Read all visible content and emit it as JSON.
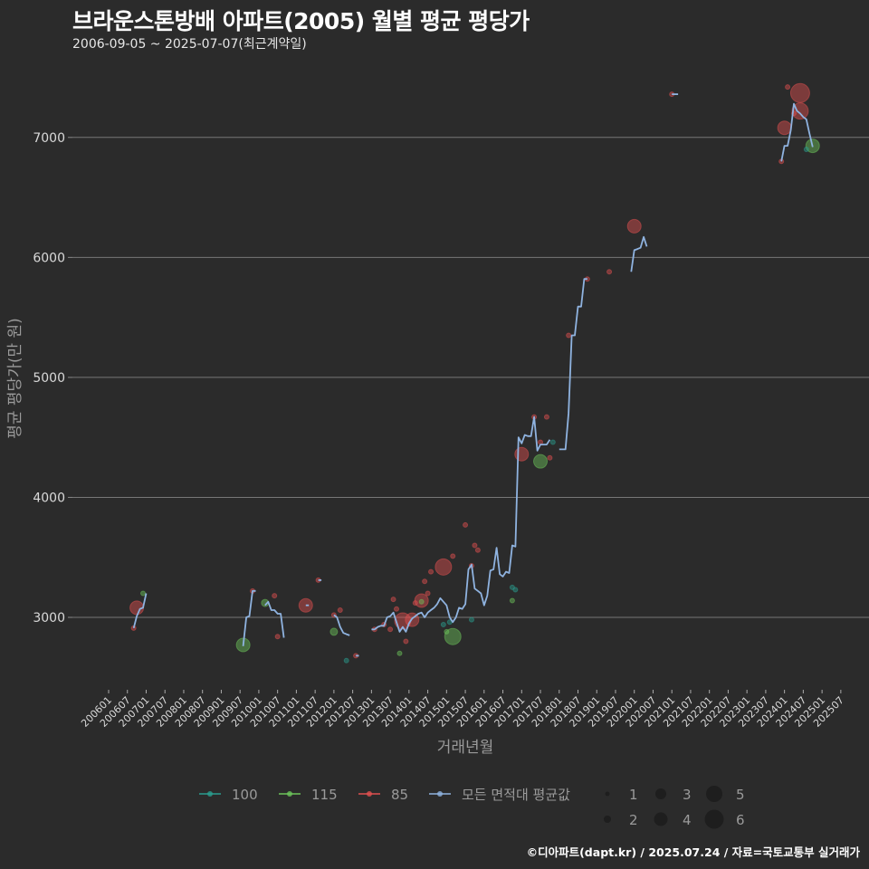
{
  "header": {
    "title": "브라운스톤방배 아파트(2005) 월별 평균 평당가",
    "subtitle": "2006-09-05 ~ 2025-07-07(최근계약일)"
  },
  "footer": {
    "credit": "©디아파트(dapt.kr) / 2025.07.24 / 자료=국토교통부 실거래가"
  },
  "chart_data": {
    "type": "line",
    "title": "브라운스톤방배 아파트(2005) 월별 평균 평당가",
    "subtitle": "2006-09-05 ~ 2025-07-07(최근계약일)",
    "xlabel": "거래년월",
    "ylabel": "평균 평당가(만 원)",
    "ylim": [
      2450,
      7600
    ],
    "yticks": [
      3000,
      4000,
      5000,
      6000,
      7000
    ],
    "grid": true,
    "x_tick_labels": [
      "200601",
      "200607",
      "200701",
      "200707",
      "200801",
      "200807",
      "200901",
      "200907",
      "201001",
      "201007",
      "201101",
      "201107",
      "201201",
      "201207",
      "201301",
      "201307",
      "201401",
      "201407",
      "201501",
      "201507",
      "201601",
      "201607",
      "201701",
      "201707",
      "201801",
      "201807",
      "201901",
      "201907",
      "202001",
      "202007",
      "202101",
      "202107",
      "202201",
      "202207",
      "202301",
      "202307",
      "202401",
      "202407",
      "202501",
      "202507"
    ],
    "legend": {
      "position": "bottom",
      "color_entries": [
        {
          "label": "100",
          "color": "#2a9d8f"
        },
        {
          "label": "115",
          "color": "#6cc35a"
        },
        {
          "label": "85",
          "color": "#e0504f"
        },
        {
          "label": "모든 면적대 평균값",
          "color": "#8fb3e0"
        }
      ],
      "size_entries": [
        "1",
        "2",
        "3",
        "4",
        "5",
        "6"
      ]
    },
    "series": [
      {
        "name": "모든 면적대 평균값",
        "type": "line",
        "color": "#8fb3e0",
        "segments": [
          [
            [
              "200609",
              2910
            ],
            [
              "200610",
              3010
            ],
            [
              "200611",
              3070
            ],
            [
              "200612",
              3080
            ],
            [
              "200701",
              3200
            ]
          ],
          [
            [
              "200908",
              2760
            ],
            [
              "200909",
              3000
            ],
            [
              "200910",
              3010
            ],
            [
              "200911",
              3220
            ],
            [
              "200912",
              3220
            ]
          ],
          [
            [
              "201003",
              3100
            ],
            [
              "201004",
              3130
            ],
            [
              "201005",
              3060
            ],
            [
              "201006",
              3060
            ],
            [
              "201007",
              3030
            ],
            [
              "201008",
              3030
            ],
            [
              "201009",
              2830
            ]
          ],
          [
            [
              "201104",
              3100
            ],
            [
              "201105",
              3100
            ]
          ],
          [
            [
              "201108",
              3310
            ],
            [
              "201109",
              3310
            ]
          ],
          [
            [
              "201201",
              3020
            ],
            [
              "201202",
              3000
            ],
            [
              "201203",
              2920
            ],
            [
              "201204",
              2870
            ],
            [
              "201205",
              2860
            ],
            [
              "201206",
              2850
            ]
          ],
          [
            [
              "201208",
              2680
            ],
            [
              "201209",
              2680
            ]
          ],
          [
            [
              "201301",
              2900
            ],
            [
              "201302",
              2900
            ],
            [
              "201303",
              2920
            ],
            [
              "201304",
              2930
            ],
            [
              "201305",
              2930
            ],
            [
              "201306",
              3000
            ],
            [
              "201307",
              3010
            ],
            [
              "201308",
              3040
            ],
            [
              "201309",
              2960
            ],
            [
              "201310",
              2880
            ],
            [
              "201311",
              2920
            ],
            [
              "201312",
              2880
            ],
            [
              "201401",
              2950
            ],
            [
              "201402",
              2990
            ],
            [
              "201403",
              3010
            ],
            [
              "201404",
              3030
            ],
            [
              "201405",
              3040
            ],
            [
              "201406",
              3000
            ],
            [
              "201407",
              3040
            ],
            [
              "201408",
              3060
            ],
            [
              "201409",
              3080
            ],
            [
              "201410",
              3110
            ],
            [
              "201411",
              3160
            ],
            [
              "201412",
              3130
            ],
            [
              "201501",
              3100
            ],
            [
              "201502",
              3000
            ],
            [
              "201503",
              2960
            ],
            [
              "201504",
              3000
            ],
            [
              "201505",
              3080
            ],
            [
              "201506",
              3070
            ],
            [
              "201507",
              3110
            ],
            [
              "201508",
              3400
            ],
            [
              "201509",
              3440
            ],
            [
              "201510",
              3240
            ],
            [
              "201511",
              3220
            ],
            [
              "201512",
              3200
            ],
            [
              "201601",
              3100
            ],
            [
              "201602",
              3180
            ],
            [
              "201603",
              3390
            ],
            [
              "201604",
              3400
            ],
            [
              "201605",
              3580
            ],
            [
              "201606",
              3360
            ],
            [
              "201607",
              3340
            ],
            [
              "201608",
              3380
            ],
            [
              "201609",
              3370
            ],
            [
              "201610",
              3600
            ],
            [
              "201611",
              3590
            ],
            [
              "201612",
              4500
            ],
            [
              "201701",
              4450
            ],
            [
              "201702",
              4520
            ],
            [
              "201703",
              4510
            ],
            [
              "201704",
              4510
            ],
            [
              "201705",
              4670
            ],
            [
              "201706",
              4390
            ],
            [
              "201707",
              4440
            ],
            [
              "201708",
              4440
            ],
            [
              "201709",
              4440
            ],
            [
              "201710",
              4480
            ]
          ],
          [
            [
              "201801",
              4400
            ],
            [
              "201802",
              4400
            ],
            [
              "201803",
              4400
            ],
            [
              "201804",
              4700
            ],
            [
              "201805",
              5350
            ],
            [
              "201806",
              5350
            ],
            [
              "201807",
              5590
            ],
            [
              "201808",
              5590
            ],
            [
              "201809",
              5820
            ],
            [
              "201810",
              5820
            ]
          ],
          [
            [
              "201912",
              5880
            ],
            [
              "202001",
              6060
            ],
            [
              "202002",
              6070
            ],
            [
              "202003",
              6080
            ],
            [
              "202004",
              6170
            ],
            [
              "202005",
              6090
            ]
          ],
          [
            [
              "202101",
              7360
            ],
            [
              "202102",
              7360
            ],
            [
              "202103",
              7360
            ]
          ],
          [
            [
              "202312",
              6800
            ],
            [
              "202401",
              6930
            ],
            [
              "202402",
              6930
            ],
            [
              "202403",
              7060
            ],
            [
              "202404",
              7280
            ],
            [
              "202405",
              7220
            ],
            [
              "202406",
              7200
            ],
            [
              "202407",
              7170
            ],
            [
              "202408",
              7150
            ],
            [
              "202409",
              7030
            ],
            [
              "202410",
              6920
            ]
          ]
        ]
      },
      {
        "name": "85",
        "type": "scatter",
        "color": "#e0504f",
        "points": [
          [
            "200610",
            3080,
            4
          ],
          [
            "200609",
            2910,
            1
          ],
          [
            "200911",
            3220,
            1
          ],
          [
            "201006",
            3180,
            1
          ],
          [
            "201007",
            2840,
            1
          ],
          [
            "201104",
            3100,
            4
          ],
          [
            "201108",
            3310,
            1
          ],
          [
            "201201",
            3020,
            1
          ],
          [
            "201203",
            3060,
            1
          ],
          [
            "201208",
            2680,
            1
          ],
          [
            "201302",
            2900,
            1
          ],
          [
            "201305",
            2940,
            1
          ],
          [
            "201307",
            2900,
            1
          ],
          [
            "201308",
            3150,
            1
          ],
          [
            "201309",
            3070,
            1
          ],
          [
            "201311",
            2970,
            5
          ],
          [
            "201312",
            2800,
            1
          ],
          [
            "201402",
            2980,
            4
          ],
          [
            "201403",
            3120,
            1
          ],
          [
            "201405",
            3140,
            4
          ],
          [
            "201406",
            3300,
            1
          ],
          [
            "201407",
            3200,
            1
          ],
          [
            "201408",
            3380,
            1
          ],
          [
            "201412",
            3420,
            5
          ],
          [
            "201503",
            3510,
            1
          ],
          [
            "201507",
            3770,
            1
          ],
          [
            "201509",
            3430,
            1
          ],
          [
            "201510",
            3600,
            1
          ],
          [
            "201511",
            3560,
            1
          ],
          [
            "201701",
            4360,
            4
          ],
          [
            "201705",
            4670,
            1
          ],
          [
            "201707",
            4460,
            1
          ],
          [
            "201709",
            4670,
            1
          ],
          [
            "201710",
            4330,
            1
          ],
          [
            "201804",
            5350,
            1
          ],
          [
            "201810",
            5820,
            1
          ],
          [
            "201905",
            5880,
            1
          ],
          [
            "202001",
            6260,
            4
          ],
          [
            "202101",
            7360,
            1
          ],
          [
            "202312",
            6800,
            1
          ],
          [
            "202401",
            7080,
            4
          ],
          [
            "202402",
            7420,
            1
          ],
          [
            "202404",
            7200,
            1
          ],
          [
            "202406",
            7370,
            6
          ],
          [
            "202406",
            7220,
            5
          ]
        ]
      },
      {
        "name": "115",
        "type": "scatter",
        "color": "#6cc35a",
        "points": [
          [
            "200612",
            3200,
            1
          ],
          [
            "200908",
            2770,
            4
          ],
          [
            "201003",
            3120,
            2
          ],
          [
            "201201",
            2880,
            2
          ],
          [
            "201310",
            2700,
            1
          ],
          [
            "201405",
            3130,
            1
          ],
          [
            "201501",
            2880,
            1
          ],
          [
            "201503",
            2840,
            5
          ],
          [
            "201610",
            3140,
            1
          ],
          [
            "201707",
            4300,
            4
          ],
          [
            "202410",
            6930,
            4
          ]
        ]
      },
      {
        "name": "100",
        "type": "scatter",
        "color": "#2a9d8f",
        "points": [
          [
            "201205",
            2640,
            1
          ],
          [
            "201412",
            2940,
            1
          ],
          [
            "201502",
            2960,
            1
          ],
          [
            "201509",
            2980,
            1
          ],
          [
            "201610",
            3250,
            1
          ],
          [
            "201611",
            3230,
            1
          ],
          [
            "201711",
            4460,
            1
          ],
          [
            "202408",
            6900,
            1
          ]
        ]
      }
    ]
  }
}
